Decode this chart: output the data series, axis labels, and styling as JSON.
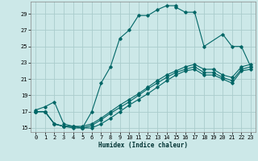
{
  "title": "",
  "xlabel": "Humidex (Indice chaleur)",
  "ylabel": "",
  "bg_color": "#cce8e8",
  "grid_color": "#aacccc",
  "line_color": "#006666",
  "xlim": [
    -0.5,
    23.5
  ],
  "ylim": [
    14.5,
    30.5
  ],
  "xticks": [
    0,
    1,
    2,
    3,
    4,
    5,
    6,
    7,
    8,
    9,
    10,
    11,
    12,
    13,
    14,
    15,
    16,
    17,
    18,
    19,
    20,
    21,
    22,
    23
  ],
  "yticks": [
    15,
    17,
    19,
    21,
    23,
    25,
    27,
    29
  ],
  "series": [
    {
      "x": [
        0,
        1,
        2,
        3,
        4,
        5,
        5,
        6,
        7,
        8,
        9,
        10,
        11,
        12,
        13,
        14,
        15,
        15,
        16,
        17,
        18,
        20,
        21,
        22,
        23
      ],
      "y": [
        17.2,
        17.6,
        18.2,
        15.5,
        15.2,
        15.0,
        15.0,
        17.0,
        20.5,
        22.5,
        26.0,
        27.0,
        28.8,
        28.8,
        29.5,
        30.0,
        30.0,
        29.8,
        29.2,
        29.2,
        25.0,
        26.5,
        25.0,
        25.0,
        22.5
      ]
    },
    {
      "x": [
        0,
        1,
        2,
        3,
        4,
        5,
        6,
        7,
        8,
        9,
        10,
        11,
        12,
        13,
        14,
        15,
        16,
        17,
        18,
        19,
        20,
        21,
        22,
        23
      ],
      "y": [
        17.0,
        17.0,
        15.5,
        15.2,
        15.2,
        15.2,
        15.5,
        16.2,
        17.0,
        17.8,
        18.5,
        19.2,
        20.0,
        20.8,
        21.5,
        22.0,
        22.5,
        22.8,
        22.2,
        22.2,
        21.5,
        21.2,
        22.5,
        22.8
      ]
    },
    {
      "x": [
        0,
        1,
        2,
        3,
        4,
        5,
        6,
        7,
        8,
        9,
        10,
        11,
        12,
        13,
        14,
        15,
        16,
        17,
        18,
        19,
        20,
        21,
        22,
        23
      ],
      "y": [
        17.0,
        17.0,
        15.5,
        15.2,
        15.2,
        15.0,
        15.3,
        16.0,
        16.8,
        17.5,
        18.2,
        19.0,
        19.8,
        20.5,
        21.2,
        21.8,
        22.2,
        22.5,
        21.8,
        21.8,
        21.2,
        20.8,
        22.2,
        22.5
      ]
    },
    {
      "x": [
        0,
        1,
        2,
        3,
        4,
        5,
        6,
        7,
        8,
        9,
        10,
        11,
        12,
        13,
        14,
        15,
        16,
        17,
        18,
        19,
        20,
        21,
        22,
        23
      ],
      "y": [
        17.0,
        17.0,
        15.5,
        15.2,
        15.0,
        15.0,
        15.0,
        15.5,
        16.2,
        17.0,
        17.8,
        18.5,
        19.2,
        20.0,
        20.8,
        21.5,
        22.0,
        22.2,
        21.5,
        21.5,
        21.0,
        20.5,
        22.0,
        22.2
      ]
    }
  ]
}
